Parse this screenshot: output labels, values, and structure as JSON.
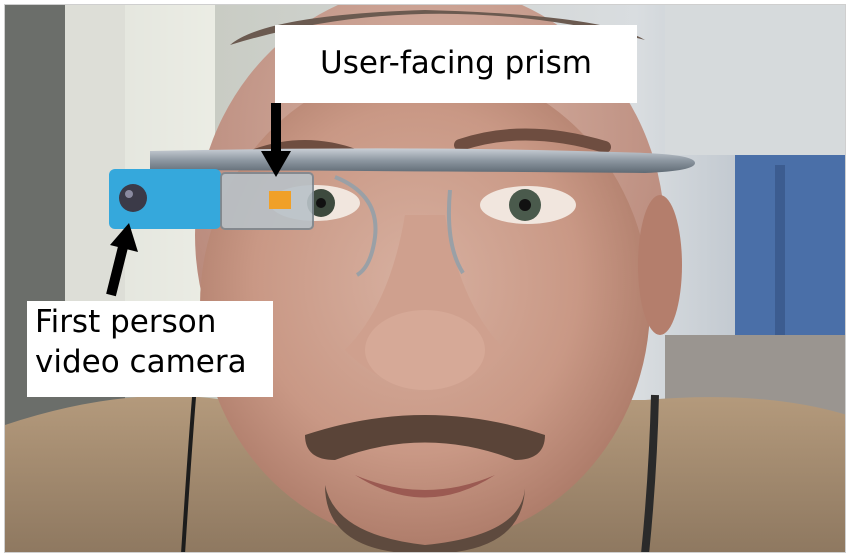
{
  "annotations": {
    "prism_label": "User-facing prism",
    "camera_label_line1": "First person",
    "camera_label_line2": "video camera"
  },
  "colors": {
    "label_background": "#ffffff",
    "label_text": "#000000",
    "arrow": "#000000",
    "glass_frame": "#9aa0a6",
    "camera_housing": "#35a8dc"
  },
  "icons": {
    "prism_pointer": "arrow-down-icon",
    "camera_pointer": "arrow-up-icon"
  }
}
